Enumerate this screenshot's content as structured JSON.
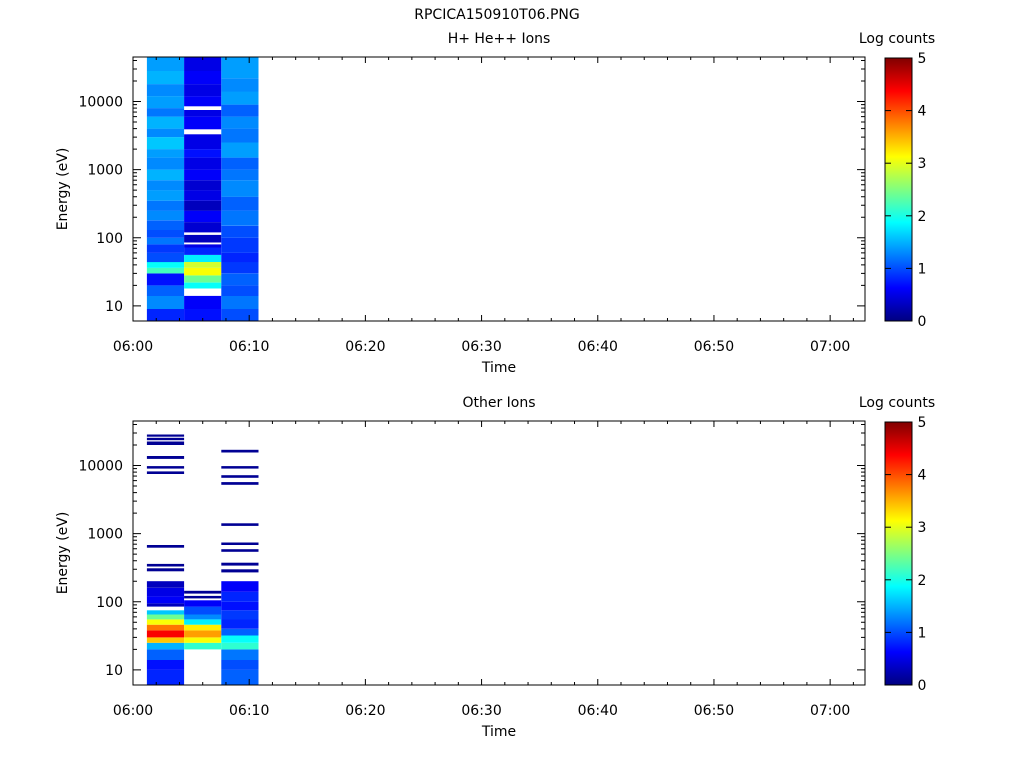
{
  "figure_title": "RPCICA150910T06.PNG",
  "colorbar": {
    "label": "Log counts",
    "ticks": [
      "0",
      "1",
      "2",
      "3",
      "4",
      "5"
    ],
    "stops": [
      "#000080",
      "#0000ff",
      "#0080ff",
      "#00ffff",
      "#80ff80",
      "#ffff00",
      "#ff8000",
      "#ff0000",
      "#800000"
    ]
  },
  "chart_data": [
    {
      "type": "heatmap",
      "title": "H+ He++ Ions",
      "xlabel": "Time",
      "ylabel": "Energy (eV)",
      "x_ticks": [
        "06:00",
        "06:10",
        "06:20",
        "06:30",
        "06:40",
        "06:50",
        "07:00"
      ],
      "y_ticks": [
        "10",
        "100",
        "1000",
        "10000"
      ],
      "y_scale": "log",
      "xlim_minutes": [
        0,
        63
      ],
      "ylim": [
        6,
        45000
      ],
      "zlim": [
        0,
        5
      ],
      "columns": [
        {
          "t_start_min": 1.2,
          "t_end_min": 4.4,
          "bins": [
            {
              "e_lo": 6,
              "e_hi": 9,
              "z": 0.8
            },
            {
              "e_lo": 9,
              "e_hi": 14,
              "z": 1.3
            },
            {
              "e_lo": 14,
              "e_hi": 20,
              "z": 1.1
            },
            {
              "e_lo": 20,
              "e_hi": 30,
              "z": 0.7
            },
            {
              "e_lo": 30,
              "e_hi": 36,
              "z": 2.2
            },
            {
              "e_lo": 36,
              "e_hi": 44,
              "z": 1.9
            },
            {
              "e_lo": 44,
              "e_hi": 60,
              "z": 1.0
            },
            {
              "e_lo": 60,
              "e_hi": 80,
              "z": 0.9
            },
            {
              "e_lo": 80,
              "e_hi": 100,
              "z": 1.2
            },
            {
              "e_lo": 100,
              "e_hi": 130,
              "z": 1.0
            },
            {
              "e_lo": 130,
              "e_hi": 180,
              "z": 1.1
            },
            {
              "e_lo": 180,
              "e_hi": 250,
              "z": 1.3
            },
            {
              "e_lo": 250,
              "e_hi": 350,
              "z": 1.2
            },
            {
              "e_lo": 350,
              "e_hi": 500,
              "z": 1.4
            },
            {
              "e_lo": 500,
              "e_hi": 700,
              "z": 1.3
            },
            {
              "e_lo": 700,
              "e_hi": 1000,
              "z": 1.5
            },
            {
              "e_lo": 1000,
              "e_hi": 1500,
              "z": 1.3
            },
            {
              "e_lo": 1500,
              "e_hi": 2000,
              "z": 1.4
            },
            {
              "e_lo": 2000,
              "e_hi": 3000,
              "z": 1.6
            },
            {
              "e_lo": 3000,
              "e_hi": 4000,
              "z": 1.3
            },
            {
              "e_lo": 4000,
              "e_hi": 6000,
              "z": 1.5
            },
            {
              "e_lo": 6000,
              "e_hi": 8000,
              "z": 1.2
            },
            {
              "e_lo": 8000,
              "e_hi": 12000,
              "z": 1.4
            },
            {
              "e_lo": 12000,
              "e_hi": 18000,
              "z": 1.3
            },
            {
              "e_lo": 18000,
              "e_hi": 28000,
              "z": 1.5
            },
            {
              "e_lo": 28000,
              "e_hi": 45000,
              "z": 1.4
            }
          ]
        },
        {
          "t_start_min": 4.4,
          "t_end_min": 7.6,
          "bins": [
            {
              "e_lo": 6,
              "e_hi": 9,
              "z": 0.7
            },
            {
              "e_lo": 9,
              "e_hi": 14,
              "z": 0.6
            },
            {
              "e_lo": 18,
              "e_hi": 22,
              "z": 1.9
            },
            {
              "e_lo": 22,
              "e_hi": 28,
              "z": 2.4
            },
            {
              "e_lo": 28,
              "e_hi": 36,
              "z": 3.1
            },
            {
              "e_lo": 36,
              "e_hi": 44,
              "z": 2.9
            },
            {
              "e_lo": 44,
              "e_hi": 56,
              "z": 1.8
            },
            {
              "e_lo": 56,
              "e_hi": 72,
              "z": 0.8
            },
            {
              "e_lo": 72,
              "e_hi": 80,
              "z": 0.5
            },
            {
              "e_lo": 85,
              "e_hi": 110,
              "z": 0.3
            },
            {
              "e_lo": 120,
              "e_hi": 170,
              "z": 0.4
            },
            {
              "e_lo": 170,
              "e_hi": 250,
              "z": 0.6
            },
            {
              "e_lo": 250,
              "e_hi": 350,
              "z": 0.3
            },
            {
              "e_lo": 350,
              "e_hi": 500,
              "z": 0.5
            },
            {
              "e_lo": 500,
              "e_hi": 700,
              "z": 0.4
            },
            {
              "e_lo": 700,
              "e_hi": 1000,
              "z": 0.6
            },
            {
              "e_lo": 1000,
              "e_hi": 1500,
              "z": 0.5
            },
            {
              "e_lo": 1500,
              "e_hi": 2000,
              "z": 0.7
            },
            {
              "e_lo": 2000,
              "e_hi": 3300,
              "z": 0.5
            },
            {
              "e_lo": 3900,
              "e_hi": 6000,
              "z": 0.6
            },
            {
              "e_lo": 6000,
              "e_hi": 7500,
              "z": 0.5
            },
            {
              "e_lo": 8500,
              "e_hi": 12000,
              "z": 0.6
            },
            {
              "e_lo": 12000,
              "e_hi": 18000,
              "z": 0.5
            },
            {
              "e_lo": 18000,
              "e_hi": 28000,
              "z": 0.6
            },
            {
              "e_lo": 28000,
              "e_hi": 45000,
              "z": 0.5
            }
          ]
        },
        {
          "t_start_min": 7.6,
          "t_end_min": 10.8,
          "bins": [
            {
              "e_lo": 6,
              "e_hi": 9,
              "z": 1.0
            },
            {
              "e_lo": 9,
              "e_hi": 14,
              "z": 1.2
            },
            {
              "e_lo": 14,
              "e_hi": 20,
              "z": 1.0
            },
            {
              "e_lo": 20,
              "e_hi": 30,
              "z": 1.1
            },
            {
              "e_lo": 30,
              "e_hi": 44,
              "z": 0.9
            },
            {
              "e_lo": 44,
              "e_hi": 60,
              "z": 0.8
            },
            {
              "e_lo": 60,
              "e_hi": 100,
              "z": 0.9
            },
            {
              "e_lo": 100,
              "e_hi": 150,
              "z": 1.0
            },
            {
              "e_lo": 150,
              "e_hi": 250,
              "z": 1.2
            },
            {
              "e_lo": 250,
              "e_hi": 400,
              "z": 1.1
            },
            {
              "e_lo": 400,
              "e_hi": 700,
              "z": 1.3
            },
            {
              "e_lo": 700,
              "e_hi": 1000,
              "z": 1.2
            },
            {
              "e_lo": 1000,
              "e_hi": 1500,
              "z": 1.1
            },
            {
              "e_lo": 1500,
              "e_hi": 2500,
              "z": 1.4
            },
            {
              "e_lo": 2500,
              "e_hi": 4000,
              "z": 1.2
            },
            {
              "e_lo": 4000,
              "e_hi": 6000,
              "z": 1.3
            },
            {
              "e_lo": 6000,
              "e_hi": 9000,
              "z": 1.1
            },
            {
              "e_lo": 9000,
              "e_hi": 14000,
              "z": 1.4
            },
            {
              "e_lo": 14000,
              "e_hi": 22000,
              "z": 1.3
            },
            {
              "e_lo": 22000,
              "e_hi": 45000,
              "z": 1.4
            }
          ]
        }
      ]
    },
    {
      "type": "heatmap",
      "title": "Other Ions",
      "xlabel": "Time",
      "ylabel": "Energy (eV)",
      "x_ticks": [
        "06:00",
        "06:10",
        "06:20",
        "06:30",
        "06:40",
        "06:50",
        "07:00"
      ],
      "y_ticks": [
        "10",
        "100",
        "1000",
        "10000"
      ],
      "y_scale": "log",
      "xlim_minutes": [
        0,
        63
      ],
      "ylim": [
        6,
        45000
      ],
      "zlim": [
        0,
        5
      ],
      "columns": [
        {
          "t_start_min": 1.2,
          "t_end_min": 4.4,
          "bins": [
            {
              "e_lo": 6,
              "e_hi": 10,
              "z": 0.8
            },
            {
              "e_lo": 10,
              "e_hi": 14,
              "z": 0.7
            },
            {
              "e_lo": 14,
              "e_hi": 20,
              "z": 1.1
            },
            {
              "e_lo": 20,
              "e_hi": 25,
              "z": 1.5
            },
            {
              "e_lo": 25,
              "e_hi": 30,
              "z": 3.4
            },
            {
              "e_lo": 30,
              "e_hi": 38,
              "z": 4.4
            },
            {
              "e_lo": 38,
              "e_hi": 46,
              "z": 3.8
            },
            {
              "e_lo": 46,
              "e_hi": 55,
              "z": 3.1
            },
            {
              "e_lo": 55,
              "e_hi": 65,
              "z": 2.4
            },
            {
              "e_lo": 65,
              "e_hi": 75,
              "z": 1.6
            },
            {
              "e_lo": 85,
              "e_hi": 95,
              "z": 0.3
            },
            {
              "e_lo": 95,
              "e_hi": 120,
              "z": 0.6
            },
            {
              "e_lo": 120,
              "e_hi": 160,
              "z": 0.5
            },
            {
              "e_lo": 160,
              "e_hi": 200,
              "z": 0.3
            },
            {
              "e_lo": 280,
              "e_hi": 310,
              "z": 0.1
            },
            {
              "e_lo": 330,
              "e_hi": 360,
              "z": 0.1
            },
            {
              "e_lo": 620,
              "e_hi": 680,
              "z": 0.1
            },
            {
              "e_lo": 7500,
              "e_hi": 8200,
              "z": 0.1
            },
            {
              "e_lo": 9000,
              "e_hi": 9800,
              "z": 0.1
            },
            {
              "e_lo": 12500,
              "e_hi": 13800,
              "z": 0.1
            },
            {
              "e_lo": 20000,
              "e_hi": 22500,
              "z": 0.1
            },
            {
              "e_lo": 23500,
              "e_hi": 25500,
              "z": 0.1
            },
            {
              "e_lo": 26500,
              "e_hi": 28500,
              "z": 0.1
            }
          ]
        },
        {
          "t_start_min": 4.4,
          "t_end_min": 7.6,
          "bins": [
            {
              "e_lo": 20,
              "e_hi": 25,
              "z": 2.1
            },
            {
              "e_lo": 25,
              "e_hi": 30,
              "z": 3.1
            },
            {
              "e_lo": 30,
              "e_hi": 38,
              "z": 3.6
            },
            {
              "e_lo": 38,
              "e_hi": 46,
              "z": 3.2
            },
            {
              "e_lo": 46,
              "e_hi": 55,
              "z": 1.8
            },
            {
              "e_lo": 55,
              "e_hi": 65,
              "z": 1.3
            },
            {
              "e_lo": 65,
              "e_hi": 85,
              "z": 1.0
            },
            {
              "e_lo": 85,
              "e_hi": 105,
              "z": 0.6
            },
            {
              "e_lo": 112,
              "e_hi": 122,
              "z": 0.1
            },
            {
              "e_lo": 132,
              "e_hi": 145,
              "z": 0.1
            }
          ]
        },
        {
          "t_start_min": 7.6,
          "t_end_min": 10.8,
          "bins": [
            {
              "e_lo": 6,
              "e_hi": 10,
              "z": 1.1
            },
            {
              "e_lo": 10,
              "e_hi": 14,
              "z": 1.0
            },
            {
              "e_lo": 14,
              "e_hi": 20,
              "z": 1.2
            },
            {
              "e_lo": 20,
              "e_hi": 25,
              "z": 2.1
            },
            {
              "e_lo": 25,
              "e_hi": 32,
              "z": 1.9
            },
            {
              "e_lo": 32,
              "e_hi": 40,
              "z": 1.1
            },
            {
              "e_lo": 40,
              "e_hi": 55,
              "z": 0.8
            },
            {
              "e_lo": 55,
              "e_hi": 75,
              "z": 0.9
            },
            {
              "e_lo": 75,
              "e_hi": 100,
              "z": 0.7
            },
            {
              "e_lo": 100,
              "e_hi": 140,
              "z": 0.8
            },
            {
              "e_lo": 140,
              "e_hi": 200,
              "z": 0.6
            },
            {
              "e_lo": 270,
              "e_hi": 300,
              "z": 0.1
            },
            {
              "e_lo": 340,
              "e_hi": 375,
              "z": 0.1
            },
            {
              "e_lo": 540,
              "e_hi": 590,
              "z": 0.1
            },
            {
              "e_lo": 680,
              "e_hi": 740,
              "z": 0.1
            },
            {
              "e_lo": 1300,
              "e_hi": 1420,
              "z": 0.1
            },
            {
              "e_lo": 5200,
              "e_hi": 5700,
              "z": 0.1
            },
            {
              "e_lo": 6600,
              "e_hi": 7200,
              "z": 0.1
            },
            {
              "e_lo": 9000,
              "e_hi": 9800,
              "z": 0.1
            },
            {
              "e_lo": 15500,
              "e_hi": 17000,
              "z": 0.1
            }
          ]
        }
      ]
    }
  ]
}
